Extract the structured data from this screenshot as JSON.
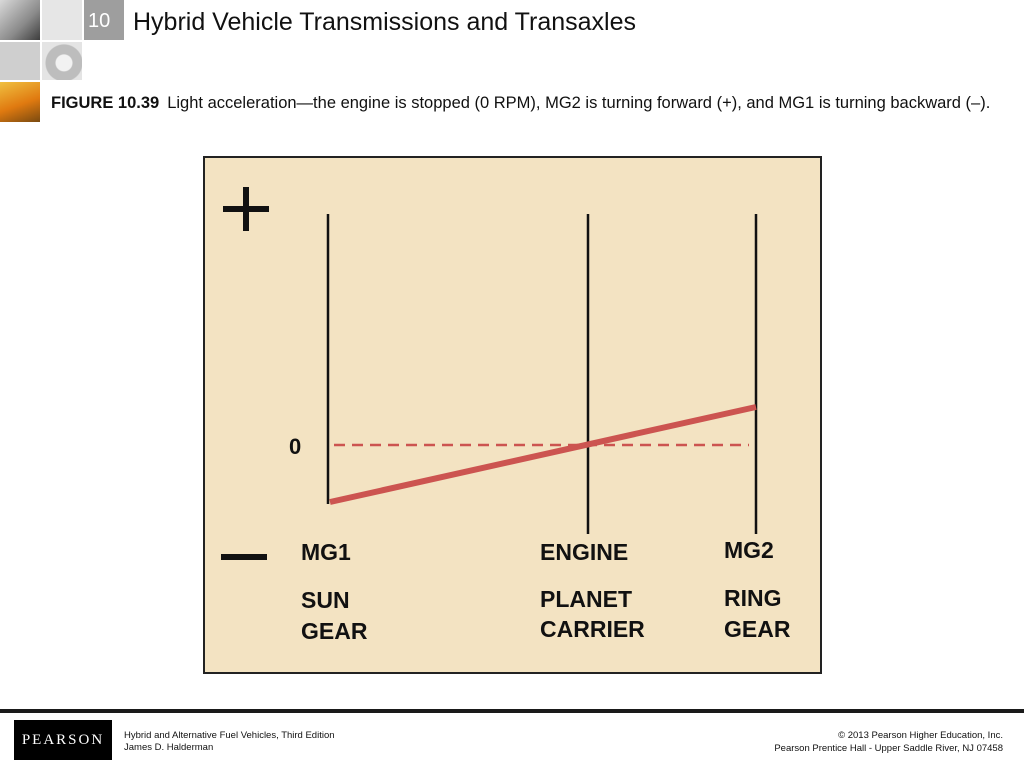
{
  "header": {
    "chapter_number": "10",
    "title": "Hybrid Vehicle Transmissions and Transaxles"
  },
  "caption": {
    "label": "FIGURE 10.39",
    "text": "Light acceleration—the engine is stopped (0 RPM), MG2 is turning forward (+), and MG1 is turning backward (–)."
  },
  "diagram": {
    "background_color": "#f3e3c2",
    "line_color": "#cc5450",
    "plus_symbol": "+",
    "zero_label": "0",
    "columns": [
      {
        "top_label": "MG1",
        "gear_line1": "SUN",
        "gear_line2": "GEAR"
      },
      {
        "top_label": "ENGINE",
        "gear_line1": "PLANET",
        "gear_line2": "CARRIER"
      },
      {
        "top_label": "MG2",
        "gear_line1": "RING",
        "gear_line2": "GEAR"
      }
    ]
  },
  "footer": {
    "logo": "PEARSON",
    "book_title": "Hybrid and Alternative Fuel Vehicles, Third Edition",
    "author": "James D. Halderman",
    "copyright": "© 2013  Pearson Higher Education, Inc.",
    "publisher": "Pearson Prentice Hall - Upper Saddle River, NJ 07458"
  }
}
